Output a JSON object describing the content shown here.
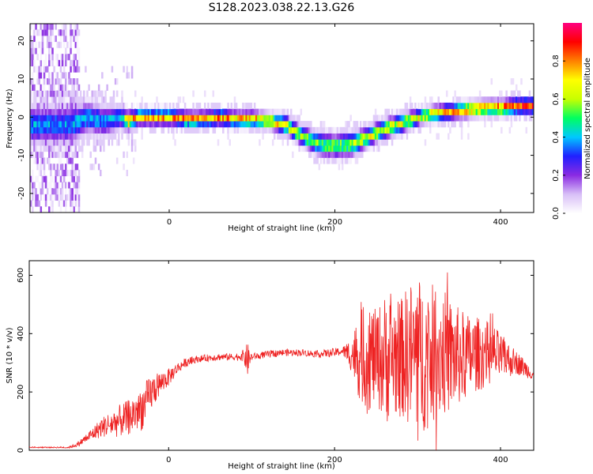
{
  "figure_title": "S128.2023.038.22.13.G26",
  "chart_data": [
    {
      "type": "heatmap",
      "xlabel": "Height of straight line (km)",
      "ylabel": "Frequency (Hz)",
      "xlim": [
        -168,
        440
      ],
      "ylim": [
        -25,
        24.5
      ],
      "x_ticks": [
        0,
        200,
        400
      ],
      "x_tick_labels": [
        "0",
        "200",
        "400"
      ],
      "y_ticks": [
        -20,
        -10,
        0,
        10,
        20
      ],
      "y_tick_labels": [
        "-20",
        "-10",
        "0",
        "10",
        "20"
      ],
      "colorbar": {
        "label": "Normalized spectral amplitude",
        "range": [
          0,
          1
        ],
        "ticks": [
          0.0,
          0.2,
          0.4,
          0.6,
          0.8
        ],
        "tick_labels": [
          "0.0",
          "0.2",
          "0.4",
          "0.6",
          "0.8"
        ],
        "colormap": [
          "#ffffff",
          "#d8bff7",
          "#8a2be2",
          "#2020ff",
          "#00c8ff",
          "#00ff60",
          "#c8ff00",
          "#ffff00",
          "#ff8000",
          "#ff0000",
          "#ff0080"
        ]
      },
      "ridge": {
        "x": [
          -120,
          -100,
          -80,
          -60,
          -50,
          -40,
          -20,
          0,
          20,
          40,
          60,
          80,
          100,
          120,
          140,
          160,
          180,
          200,
          220,
          240,
          260,
          280,
          300,
          320,
          340,
          360,
          380,
          400,
          420,
          440
        ],
        "freq": [
          -2,
          0,
          -1,
          0,
          -1,
          0,
          0,
          0,
          -0.5,
          -0.5,
          0,
          -0.5,
          -0.5,
          -1,
          -2,
          -5,
          -7,
          -7.5,
          -7,
          -5,
          -3,
          -1.5,
          0,
          1,
          1.5,
          2,
          2.5,
          2.5,
          3,
          3
        ],
        "half_width_hz": [
          5,
          4,
          4,
          3,
          2.5,
          2,
          2,
          2,
          2,
          2,
          2,
          2,
          2,
          2,
          2.5,
          2.5,
          3,
          3,
          3,
          2.5,
          2.5,
          2.5,
          2,
          2,
          2,
          2,
          2,
          2,
          2,
          2
        ],
        "peak_amplitude": [
          0.4,
          0.45,
          0.4,
          0.45,
          0.8,
          0.85,
          0.85,
          0.8,
          0.85,
          0.8,
          0.85,
          0.8,
          0.85,
          0.8,
          0.7,
          0.6,
          0.6,
          0.6,
          0.65,
          0.7,
          0.7,
          0.7,
          0.7,
          0.8,
          0.8,
          0.85,
          0.85,
          0.9,
          0.9,
          0.9
        ]
      },
      "noise_region_x": [
        -168,
        -110
      ]
    },
    {
      "type": "line",
      "xlabel": "Height of straight line (km)",
      "ylabel": "SNR (10 * v/v)",
      "xlim": [
        -168,
        440
      ],
      "ylim": [
        0,
        650
      ],
      "x_ticks": [
        0,
        200,
        400
      ],
      "x_tick_labels": [
        "0",
        "200",
        "400"
      ],
      "y_ticks": [
        0,
        200,
        400,
        600
      ],
      "y_tick_labels": [
        "0",
        "200",
        "400",
        "600"
      ],
      "series": [
        {
          "color": "#ee2222",
          "x": [
            -168,
            -140,
            -120,
            -110,
            -100,
            -90,
            -80,
            -70,
            -60,
            -50,
            -40,
            -30,
            -20,
            -10,
            0,
            10,
            20,
            30,
            40,
            60,
            80,
            90,
            95,
            100,
            120,
            140,
            160,
            180,
            200,
            210,
            220,
            230,
            240,
            250,
            260,
            270,
            280,
            290,
            300,
            310,
            320,
            330,
            340,
            350,
            360,
            370,
            380,
            390,
            400,
            410,
            420,
            430,
            440
          ],
          "y": [
            10,
            10,
            10,
            20,
            40,
            60,
            80,
            90,
            100,
            110,
            130,
            150,
            200,
            230,
            250,
            280,
            300,
            310,
            315,
            320,
            320,
            325,
            310,
            320,
            330,
            335,
            335,
            330,
            335,
            340,
            330,
            320,
            320,
            320,
            315,
            320,
            320,
            330,
            320,
            320,
            330,
            340,
            320,
            320,
            320,
            330,
            330,
            330,
            320,
            310,
            300,
            280,
            260
          ],
          "noise_amplitude": [
            2,
            2,
            3,
            8,
            15,
            25,
            35,
            45,
            55,
            60,
            70,
            80,
            60,
            40,
            30,
            20,
            15,
            12,
            12,
            12,
            12,
            20,
            60,
            12,
            12,
            12,
            12,
            12,
            15,
            15,
            60,
            150,
            200,
            160,
            220,
            230,
            200,
            250,
            280,
            250,
            240,
            220,
            200,
            170,
            150,
            130,
            120,
            110,
            80,
            60,
            40,
            30,
            20
          ]
        }
      ]
    }
  ]
}
